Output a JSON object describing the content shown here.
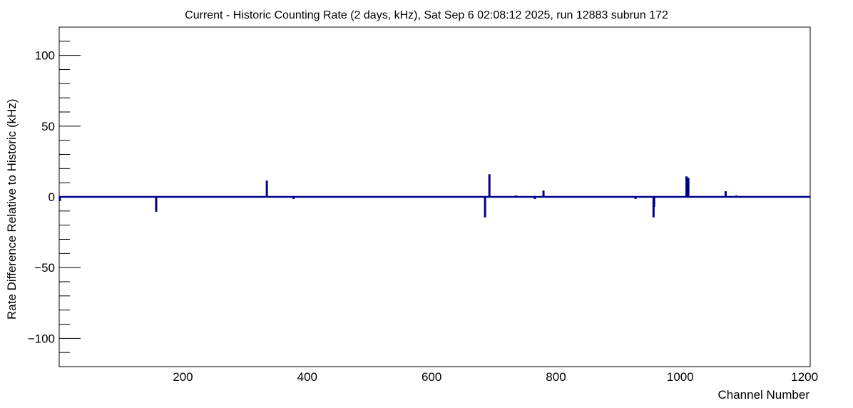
{
  "chart_data": {
    "type": "bar",
    "title": "Current - Historic Counting Rate (2 days, kHz), Sat Sep  6 02:08:12 2025, run 12883 subrun 172",
    "xlabel": "Channel Number",
    "ylabel": "Rate Difference Relative to Historic (kHz)",
    "xlim": [
      1,
      1209
    ],
    "ylim": [
      -120,
      120
    ],
    "x_ticks": [
      200,
      400,
      600,
      800,
      1000,
      1200
    ],
    "y_ticks": [
      -100,
      -50,
      0,
      50,
      100
    ],
    "grid": false,
    "bar_color": "#00008b",
    "series": [
      {
        "x": [
          2,
          157,
          335,
          378,
          686,
          693,
          736,
          766,
          780,
          928,
          957,
          958,
          1010,
          1013,
          1073,
          1090
        ],
        "values": [
          -3,
          -10.5,
          11.5,
          -1.5,
          -14.5,
          16,
          1,
          -1.5,
          4.5,
          -1.5,
          -14.5,
          -7,
          14.5,
          13.5,
          4,
          1
        ]
      }
    ]
  }
}
